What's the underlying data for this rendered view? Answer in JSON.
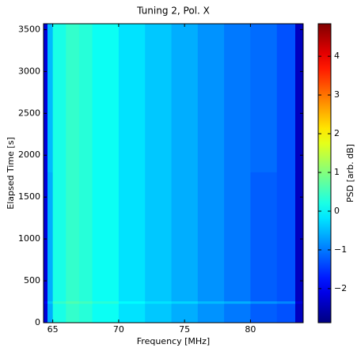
{
  "chart_data": {
    "type": "heatmap",
    "title": "Tuning 2, Pol. X",
    "xlabel": "Frequency [MHz]",
    "ylabel": "Elapsed Time [s]",
    "colorbar_label": "PSD [arb. dB]",
    "colormap": "jet",
    "x_edges": [
      64.3,
      64.6,
      65,
      66,
      67,
      68,
      70,
      72,
      74,
      76,
      78,
      80,
      82,
      83.4,
      84.0
    ],
    "y_edges": [
      0,
      230,
      260,
      1800,
      3570
    ],
    "values": [
      [
        -2.2,
        -0.6,
        0.2,
        0.4,
        0.3,
        0.1,
        -0.2,
        -0.4,
        -0.6,
        -0.8,
        -1.0,
        -1.2,
        -1.3,
        -2.4
      ],
      [
        -2.0,
        -0.4,
        0.4,
        0.6,
        0.5,
        0.3,
        0.0,
        -0.2,
        -0.3,
        -0.5,
        -0.6,
        -0.8,
        -0.9,
        -2.2
      ],
      [
        -2.2,
        -0.6,
        0.2,
        0.4,
        0.3,
        0.1,
        -0.2,
        -0.4,
        -0.6,
        -0.8,
        -1.0,
        -1.2,
        -1.3,
        -2.4
      ],
      [
        -2.2,
        -0.5,
        0.2,
        0.4,
        0.3,
        0.1,
        -0.2,
        -0.4,
        -0.6,
        -0.8,
        -1.0,
        -1.1,
        -1.3,
        -2.4
      ]
    ],
    "xlim": [
      64.3,
      84.0
    ],
    "ylim": [
      0,
      3570
    ],
    "clim": [
      -2.88,
      4.84
    ],
    "xticks": [
      65,
      70,
      75,
      80
    ],
    "yticks": [
      0,
      500,
      1000,
      1500,
      2000,
      2500,
      3000,
      3500
    ],
    "cticks": [
      {
        "value": -2,
        "label": "−2"
      },
      {
        "value": -1,
        "label": "−1"
      },
      0,
      1,
      2,
      3,
      4
    ]
  }
}
